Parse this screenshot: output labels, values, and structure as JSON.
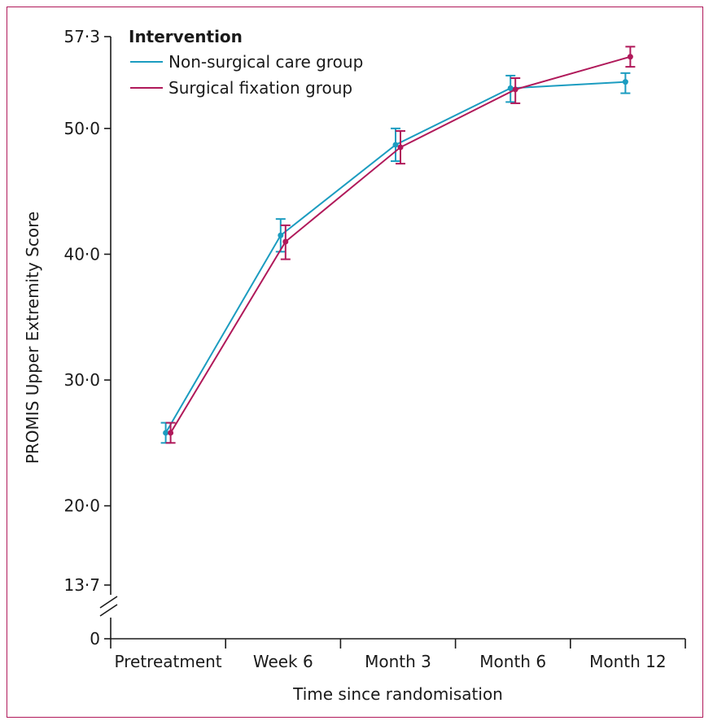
{
  "chart_data": {
    "type": "line",
    "title": "",
    "xlabel": "Time since randomisation",
    "ylabel": "PROMIS Upper Extremity Score",
    "categories": [
      "Pretreatment",
      "Week 6",
      "Month 3",
      "Month 6",
      "Month 12"
    ],
    "y_ticks": [
      {
        "value": 0,
        "label": "0"
      },
      {
        "value": 13.7,
        "label": "13·7"
      },
      {
        "value": 20.0,
        "label": "20·0"
      },
      {
        "value": 30.0,
        "label": "30·0"
      },
      {
        "value": 40.0,
        "label": "40·0"
      },
      {
        "value": 50.0,
        "label": "50·0"
      },
      {
        "value": 57.3,
        "label": "57·3"
      }
    ],
    "ylim": [
      13.7,
      57.3
    ],
    "axis_break": true,
    "legend": {
      "title": "Intervention",
      "placement": "top-left"
    },
    "series": [
      {
        "name": "Non-surgical care group",
        "color": "#1b9cc0",
        "values": [
          25.8,
          41.5,
          48.7,
          53.2,
          53.7
        ],
        "ci_low": [
          25.0,
          40.2,
          47.4,
          52.1,
          52.8
        ],
        "ci_high": [
          26.6,
          42.8,
          50.0,
          54.2,
          54.4
        ]
      },
      {
        "name": "Surgical fixation group",
        "color": "#b0195a",
        "values": [
          25.8,
          41.0,
          48.5,
          53.1,
          55.7
        ],
        "ci_low": [
          25.0,
          39.6,
          47.2,
          52.0,
          54.9
        ],
        "ci_high": [
          26.6,
          42.3,
          49.8,
          54.0,
          56.5
        ]
      }
    ]
  }
}
